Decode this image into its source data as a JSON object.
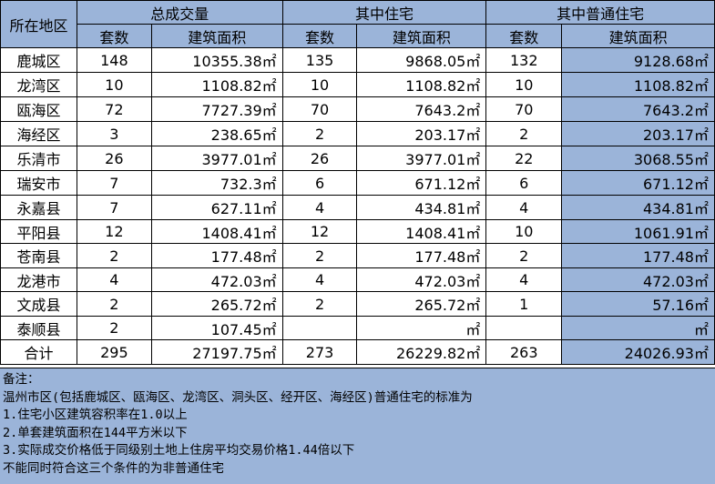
{
  "header": {
    "region_label": "所在地区",
    "groups": [
      "总成交量",
      "其中住宅",
      "其中普通住宅"
    ],
    "sub_count": "套数",
    "sub_area": "建筑面积"
  },
  "rows": [
    {
      "name": "鹿城区",
      "total_n": "148",
      "total_a": "10355.38㎡",
      "res_n": "135",
      "res_a": "9868.05㎡",
      "ord_n": "132",
      "ord_a": "9128.68㎡"
    },
    {
      "name": "龙湾区",
      "total_n": "10",
      "total_a": "1108.82㎡",
      "res_n": "10",
      "res_a": "1108.82㎡",
      "ord_n": "10",
      "ord_a": "1108.82㎡"
    },
    {
      "name": "瓯海区",
      "total_n": "72",
      "total_a": "7727.39㎡",
      "res_n": "70",
      "res_a": "7643.2㎡",
      "ord_n": "70",
      "ord_a": "7643.2㎡"
    },
    {
      "name": "海经区",
      "total_n": "3",
      "total_a": "238.65㎡",
      "res_n": "2",
      "res_a": "203.17㎡",
      "ord_n": "2",
      "ord_a": "203.17㎡"
    },
    {
      "name": "乐清市",
      "total_n": "26",
      "total_a": "3977.01㎡",
      "res_n": "26",
      "res_a": "3977.01㎡",
      "ord_n": "22",
      "ord_a": "3068.55㎡"
    },
    {
      "name": "瑞安市",
      "total_n": "7",
      "total_a": "732.3㎡",
      "res_n": "6",
      "res_a": "671.12㎡",
      "ord_n": "6",
      "ord_a": "671.12㎡"
    },
    {
      "name": "永嘉县",
      "total_n": "7",
      "total_a": "627.11㎡",
      "res_n": "4",
      "res_a": "434.81㎡",
      "ord_n": "4",
      "ord_a": "434.81㎡"
    },
    {
      "name": "平阳县",
      "total_n": "12",
      "total_a": "1408.41㎡",
      "res_n": "12",
      "res_a": "1408.41㎡",
      "ord_n": "10",
      "ord_a": "1061.91㎡"
    },
    {
      "name": "苍南县",
      "total_n": "2",
      "total_a": "177.48㎡",
      "res_n": "2",
      "res_a": "177.48㎡",
      "ord_n": "2",
      "ord_a": "177.48㎡"
    },
    {
      "name": "龙港市",
      "total_n": "4",
      "total_a": "472.03㎡",
      "res_n": "4",
      "res_a": "472.03㎡",
      "ord_n": "4",
      "ord_a": "472.03㎡"
    },
    {
      "name": "文成县",
      "total_n": "2",
      "total_a": "265.72㎡",
      "res_n": "2",
      "res_a": "265.72㎡",
      "ord_n": "1",
      "ord_a": "57.16㎡"
    },
    {
      "name": "泰顺县",
      "total_n": "2",
      "total_a": "107.45㎡",
      "res_n": "",
      "res_a": "㎡",
      "ord_n": "",
      "ord_a": "㎡"
    },
    {
      "name": "合计",
      "total_n": "295",
      "total_a": "27197.75㎡",
      "res_n": "273",
      "res_a": "26229.82㎡",
      "ord_n": "263",
      "ord_a": "24026.93㎡"
    }
  ],
  "notes": [
    "备注：",
    "温州市区(包括鹿城区、瓯海区、龙湾区、洞头区、经开区、海经区)普通住宅的标准为",
    "1.住宅小区建筑容积率在1.0以上",
    "2.单套建筑面积在144平方米以下",
    "3.实际成交价格低于同级别土地上住房平均交易价格1.44倍以下",
    "不能同时符合这三个条件的为非普通住宅"
  ],
  "colors": {
    "header_bg": "#9bb4d9",
    "grid_line": "#000000",
    "cell_bg": "#ffffff"
  }
}
